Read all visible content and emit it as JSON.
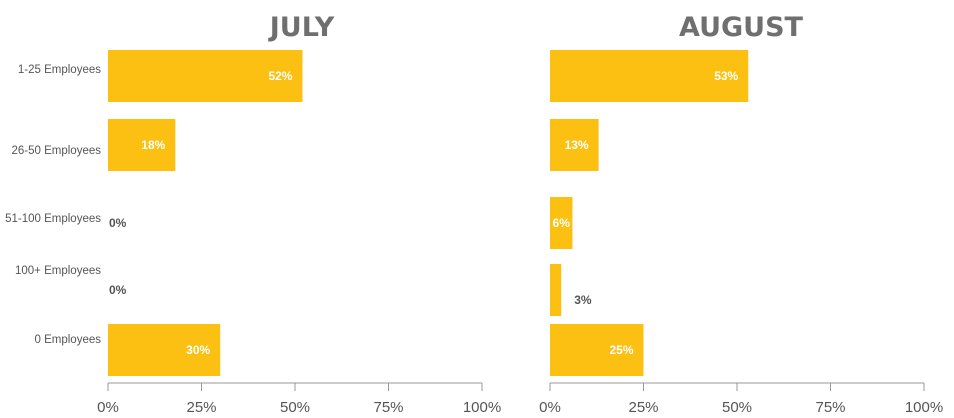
{
  "chart_data": [
    {
      "type": "bar",
      "orientation": "horizontal",
      "title": "JULY",
      "categories": [
        "1-25 Employees",
        "26-50 Employees",
        "51-100 Employees",
        "100+ Employees",
        "0 Employees"
      ],
      "values": [
        52,
        18,
        0,
        0,
        30
      ],
      "value_labels": [
        "52%",
        "18%",
        "0%",
        "0%",
        "30%"
      ],
      "xlim": [
        0,
        100
      ],
      "x_ticks": [
        "0%",
        "25%",
        "50%",
        "75%",
        "100%"
      ],
      "show_category_labels": true,
      "bar_color": "#fcc012",
      "grid": false
    },
    {
      "type": "bar",
      "orientation": "horizontal",
      "title": "AUGUST",
      "categories": [
        "1-25 Employees",
        "26-50 Employees",
        "51-100 Employees",
        "100+ Employees",
        "0 Employees"
      ],
      "values": [
        53,
        13,
        6,
        3,
        25
      ],
      "value_labels": [
        "53%",
        "13%",
        "6%",
        "3%",
        "25%"
      ],
      "xlim": [
        0,
        100
      ],
      "x_ticks": [
        "0%",
        "25%",
        "50%",
        "75%",
        "100%"
      ],
      "show_category_labels": false,
      "bar_color": "#fcc012",
      "grid": false
    }
  ]
}
